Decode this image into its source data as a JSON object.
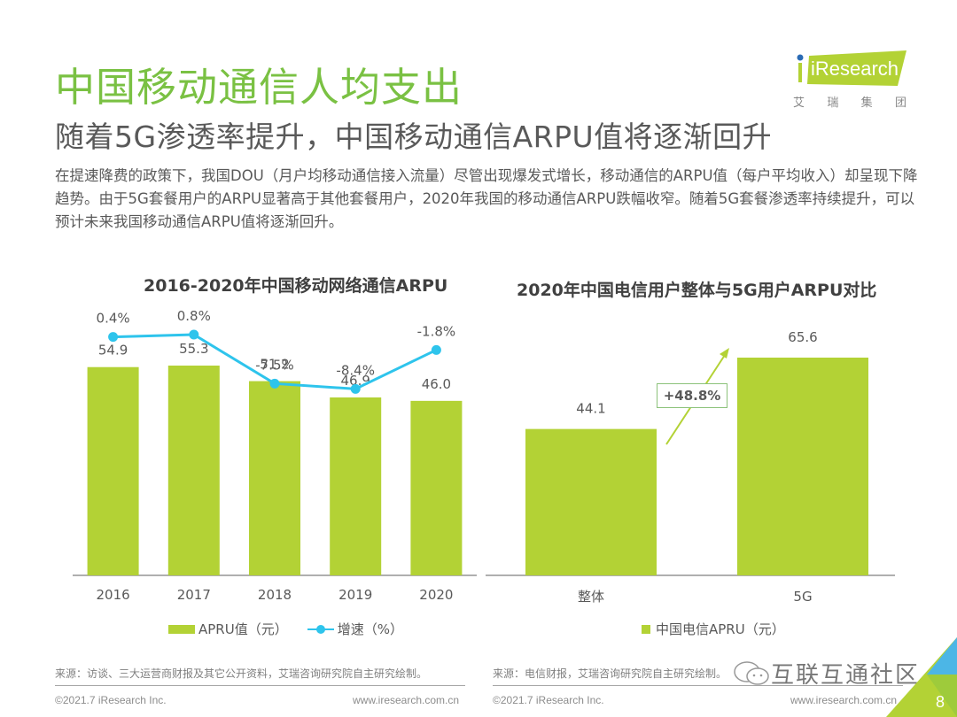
{
  "header": {
    "title": "中国移动通信人均支出",
    "subtitle": "随着5G渗透率提升，中国移动通信ARPU值将逐渐回升",
    "description": "在提速降费的政策下，我国DOU（月户均移动通信接入流量）尽管出现爆发式增长，移动通信的ARPU值（每户平均收入）却呈现下降趋势。由于5G套餐用户的ARPU显著高于其他套餐用户，2020年我国的移动通信ARPU跌幅收窄。随着5G套餐渗透率持续提升，可以预计未来我国移动通信ARPU值将逐渐回升。"
  },
  "logo": {
    "brand": "iResearch",
    "sub_chars": [
      "艾",
      "瑞",
      "集",
      "团"
    ],
    "brand_color": "#b3d235",
    "dot_color": "#2a6bb5"
  },
  "colors": {
    "bar": "#b3d235",
    "line": "#2ec4ec",
    "title_green": "#7ac143",
    "axis": "#7f7f7f"
  },
  "chart_data": [
    {
      "type": "bar+line",
      "title": "2016-2020年中国移动网络通信ARPU",
      "categories": [
        "2016",
        "2017",
        "2018",
        "2019",
        "2020"
      ],
      "series": [
        {
          "name": "APRU值（元）",
          "type": "bar",
          "values": [
            54.9,
            55.3,
            51.2,
            46.9,
            46.0
          ],
          "labels": [
            "54.9",
            "55.3",
            "51.2",
            "46.9",
            "46.0"
          ]
        },
        {
          "name": "增速（%）",
          "type": "line",
          "values": [
            0.4,
            0.8,
            -7.5,
            -8.4,
            -1.8
          ],
          "labels": [
            "0.4%",
            "0.8%",
            "-7.5%",
            "-8.4%",
            "-1.8%"
          ]
        }
      ],
      "xlabel": "",
      "ylabel": "",
      "ylim": [
        0,
        70
      ],
      "y2lim": [
        -40,
        5
      ],
      "grid": false,
      "legend_position": "bottom"
    },
    {
      "type": "bar",
      "title": "2020年中国电信用户整体与5G用户ARPU对比",
      "categories": [
        "整体",
        "5G"
      ],
      "values": [
        44.1,
        65.6
      ],
      "labels": [
        "44.1",
        "65.6"
      ],
      "series_name": "中国电信APRU（元）",
      "annotation": "+48.8%",
      "xlabel": "",
      "ylabel": "",
      "ylim": [
        0,
        80
      ],
      "grid": false,
      "legend_position": "bottom"
    }
  ],
  "footer": {
    "source_left": "来源：访谈、三大运营商财报及其它公开资料，艾瑞咨询研究院自主研究绘制。",
    "source_right": "来源：电信财报，艾瑞咨询研究院自主研究绘制。",
    "copyright_left": "©2021.7 iResearch Inc.",
    "url_left": "www.iresearch.com.cn",
    "copyright_right": "©2021.7 iResearch Inc.",
    "url_right": "www.iresearch.com.cn",
    "page_number": "8",
    "watermark": "互联互通社区"
  }
}
